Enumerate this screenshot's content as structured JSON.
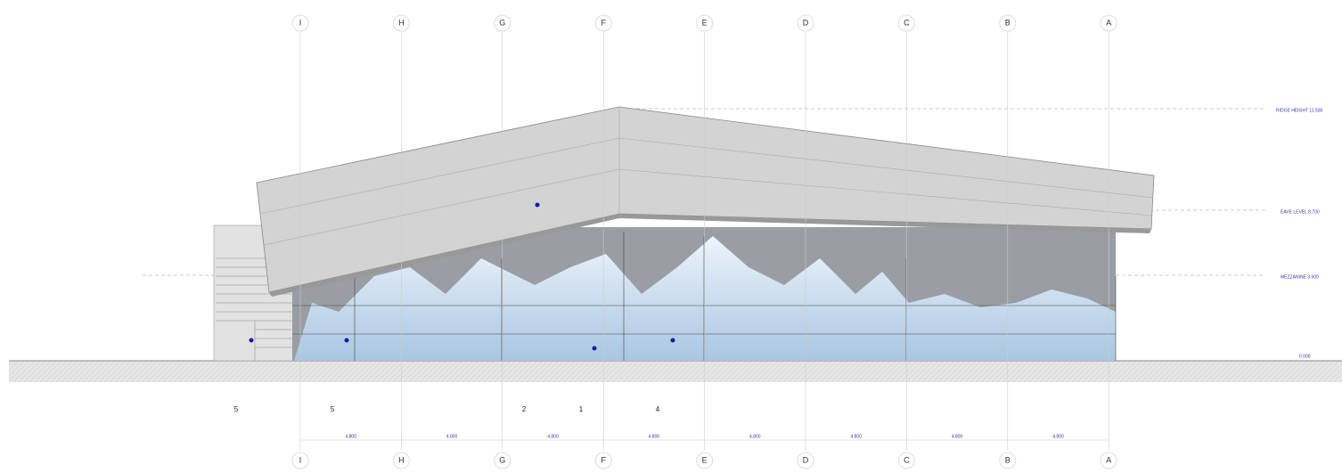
{
  "grid_top": [
    "I",
    "H",
    "G",
    "F",
    "E",
    "D",
    "C",
    "B",
    "A"
  ],
  "grid_bottom": [
    "I",
    "H",
    "G",
    "F",
    "E",
    "D",
    "C",
    "B",
    "A"
  ],
  "levels": [
    "RIDGE HEIGHT 11.500",
    "EAVE LEVEL 8.700",
    "MEZZANINE 3.600",
    "0.000"
  ],
  "dimensions": [
    "4.800",
    "4.800",
    "4.800",
    "4.800",
    "4.800",
    "4.800",
    "4.800",
    "4.800"
  ],
  "callouts": [
    "5",
    "5",
    "2",
    "1",
    "4"
  ]
}
